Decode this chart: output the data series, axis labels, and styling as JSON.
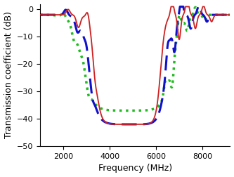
{
  "xlabel": "Frequency (MHz)",
  "ylabel": "Transmission coefficient (dB)",
  "xlim": [
    1000,
    9200
  ],
  "ylim": [
    -50,
    2
  ],
  "xticks": [
    2000,
    4000,
    6000,
    8000
  ],
  "yticks": [
    0,
    -10,
    -20,
    -30,
    -40,
    -50
  ],
  "figsize": [
    3.33,
    2.52
  ],
  "dpi": 100,
  "colors": {
    "red": "#cc2222",
    "blue": "#1111cc",
    "green": "#22bb22"
  },
  "lw_red": 1.3,
  "lw_blue": 2.2,
  "lw_green": 2.5
}
